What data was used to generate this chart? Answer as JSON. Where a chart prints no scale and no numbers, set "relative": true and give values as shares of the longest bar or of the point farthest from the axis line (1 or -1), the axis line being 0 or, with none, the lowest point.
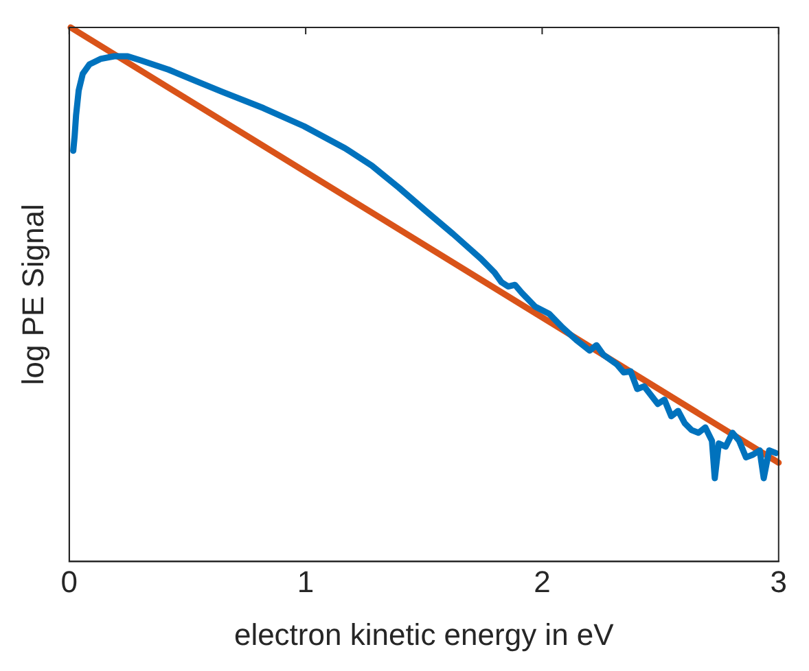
{
  "chart_data": {
    "type": "line",
    "relative": true,
    "xlabel": "electron kinetic energy in eV",
    "ylabel": "log PE Signal",
    "xlim": [
      0,
      3
    ],
    "xticks": [
      0,
      1,
      2,
      3
    ],
    "grid": false,
    "legend": false,
    "marker": "none",
    "line_style": "solid",
    "series": [
      {
        "color": "#0072bd",
        "x": [
          0.017,
          0.023,
          0.029,
          0.04,
          0.057,
          0.086,
          0.132,
          0.19,
          0.247,
          0.305,
          0.42,
          0.534,
          0.649,
          0.821,
          0.993,
          1.166,
          1.28,
          1.394,
          1.509,
          1.624,
          1.741,
          1.799,
          1.828,
          1.856,
          1.885,
          1.914,
          1.971,
          2.029,
          2.086,
          2.144,
          2.201,
          2.23,
          2.259,
          2.316,
          2.345,
          2.374,
          2.402,
          2.431,
          2.489,
          2.517,
          2.546,
          2.575,
          2.603,
          2.632,
          2.661,
          2.69,
          2.718,
          2.73,
          2.747,
          2.776,
          2.805,
          2.833,
          2.862,
          2.891,
          2.92,
          2.937,
          2.96,
          2.989
        ],
        "values": [
          0.769,
          0.797,
          0.836,
          0.882,
          0.913,
          0.931,
          0.941,
          0.946,
          0.946,
          0.938,
          0.921,
          0.9,
          0.879,
          0.849,
          0.815,
          0.774,
          0.741,
          0.7,
          0.656,
          0.613,
          0.567,
          0.541,
          0.523,
          0.515,
          0.518,
          0.503,
          0.477,
          0.464,
          0.438,
          0.415,
          0.395,
          0.405,
          0.387,
          0.369,
          0.354,
          0.356,
          0.323,
          0.328,
          0.295,
          0.303,
          0.272,
          0.282,
          0.259,
          0.246,
          0.241,
          0.251,
          0.226,
          0.156,
          0.221,
          0.215,
          0.241,
          0.226,
          0.195,
          0.2,
          0.208,
          0.156,
          0.208,
          0.203
        ]
      },
      {
        "color": "#d95319",
        "x": [
          0.006,
          3
        ],
        "values": [
          1,
          0.185
        ]
      }
    ]
  }
}
